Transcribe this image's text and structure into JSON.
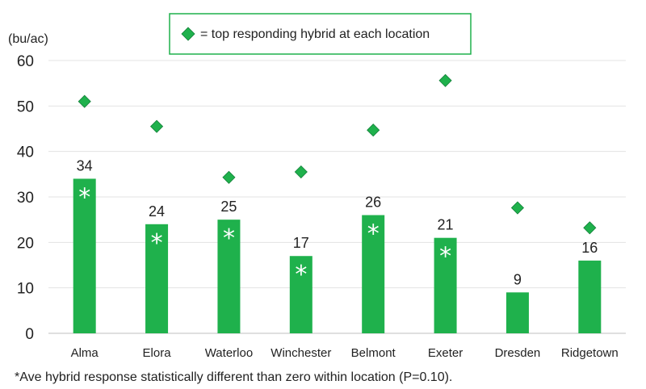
{
  "chart_data": {
    "type": "bar",
    "ylabel": "(bu/ac)",
    "ylim": [
      0,
      60
    ],
    "yticks": [
      0,
      10,
      20,
      30,
      40,
      50,
      60
    ],
    "categories": [
      "Alma",
      "Elora",
      "Waterloo",
      "Winchester",
      "Belmont",
      "Exeter",
      "Dresden",
      "Ridgetown"
    ],
    "series": [
      {
        "values": [
          34,
          24,
          25,
          17,
          26,
          21,
          9,
          16
        ],
        "data_labels": [
          "34",
          "24",
          "25",
          "17",
          "26",
          "21",
          "9",
          "16"
        ],
        "significant": [
          true,
          true,
          true,
          true,
          true,
          true,
          false,
          false
        ],
        "marker_text": "*",
        "color": "#1fb14c"
      },
      {
        "name": "= top responding hybrid at each location",
        "marker": "diamond",
        "values": [
          51,
          45.5,
          34.3,
          35.5,
          44.7,
          55.6,
          27.6,
          23.2
        ],
        "color": "#1fb14c"
      }
    ],
    "grid": "horizontal",
    "legend": "top-center",
    "footnote": "*Ave hybrid response statistically different than zero within location (P=0.10)."
  }
}
